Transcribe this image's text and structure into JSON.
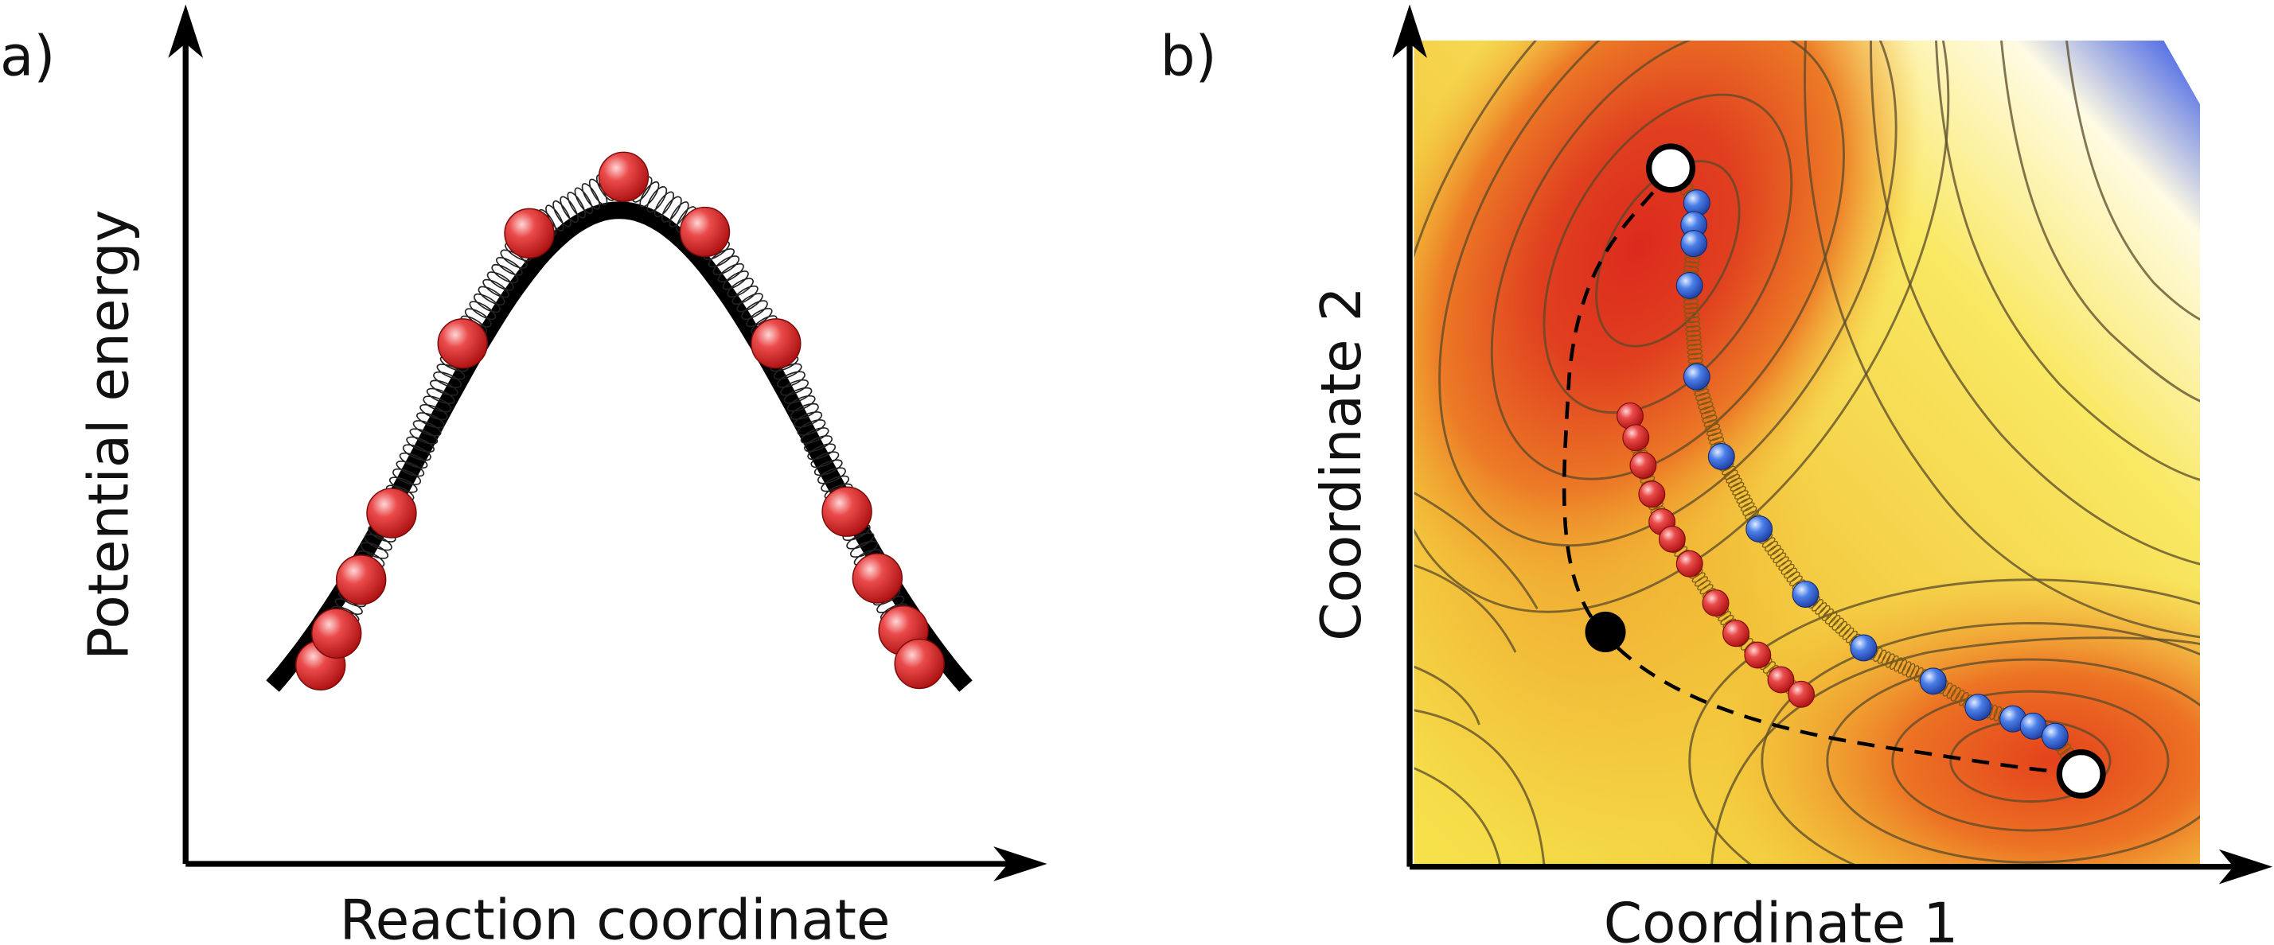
{
  "panel_a": {
    "label": "a)",
    "xlabel": "Reaction coordinate",
    "ylabel": "Potential energy",
    "bead_color": "#d91a1a",
    "bead_count": 13
  },
  "panel_b": {
    "label": "b)",
    "xlabel": "Coordinate 1",
    "ylabel": "Coordinate 2",
    "colormap": [
      "#d9261c",
      "#ee6b1d",
      "#f0b530",
      "#f7e24a",
      "#fffbe0",
      "#2b4ee6"
    ],
    "red_bead_color": "#d93030",
    "blue_bead_color": "#3a6be0"
  }
}
